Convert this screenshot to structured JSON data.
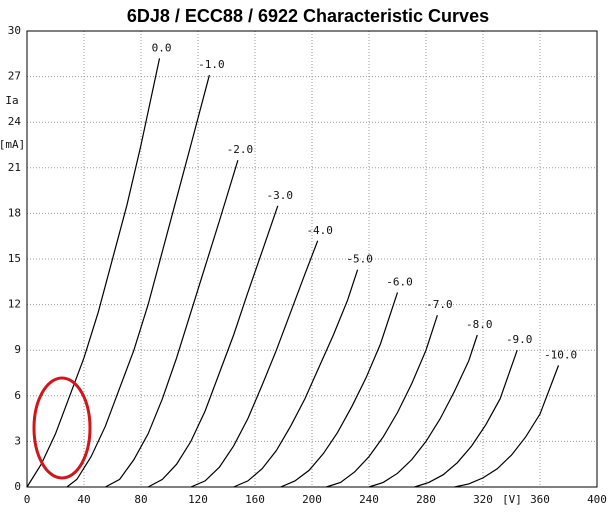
{
  "chart_data": {
    "type": "line",
    "title": "6DJ8 / ECC88 / 6922 Characteristic Curves",
    "ylabel": "Ia",
    "yunit": "[mA]",
    "xunit": "[V]",
    "xlim": [
      0,
      400
    ],
    "ylim": [
      0,
      30
    ],
    "xticks": [
      0,
      40,
      80,
      120,
      160,
      200,
      240,
      280,
      320,
      360,
      400
    ],
    "yticks": [
      0,
      3,
      6,
      9,
      12,
      15,
      18,
      21,
      24,
      27,
      30
    ],
    "grid": true,
    "series": [
      {
        "name": "0.0",
        "color": "#000000",
        "x": [
          0,
          10,
          20,
          30,
          40,
          50,
          60,
          70,
          80,
          93
        ],
        "values": [
          0,
          1.5,
          3.5,
          6,
          8.5,
          11.5,
          15,
          18.5,
          22.5,
          28.2
        ]
      },
      {
        "name": "-1.0",
        "color": "#000000",
        "x": [
          28,
          35,
          45,
          55,
          65,
          75,
          85,
          95,
          105,
          115,
          128
        ],
        "values": [
          0,
          0.5,
          2,
          4,
          6.5,
          9,
          12,
          15.5,
          19,
          22.5,
          27.1
        ]
      },
      {
        "name": "-2.0",
        "color": "#000000",
        "x": [
          55,
          65,
          75,
          85,
          95,
          105,
          115,
          125,
          135,
          148
        ],
        "values": [
          0,
          0.5,
          1.8,
          3.5,
          5.8,
          8.5,
          11.5,
          14.5,
          17.5,
          21.5
        ]
      },
      {
        "name": "-3.0",
        "color": "#000000",
        "x": [
          85,
          95,
          105,
          115,
          125,
          135,
          145,
          155,
          165,
          176
        ],
        "values": [
          0,
          0.5,
          1.5,
          3,
          5,
          7.5,
          10,
          12.8,
          15.5,
          18.5
        ]
      },
      {
        "name": "-4.0",
        "color": "#000000",
        "x": [
          115,
          125,
          135,
          145,
          155,
          165,
          175,
          185,
          195,
          204
        ],
        "values": [
          0,
          0.4,
          1.3,
          2.7,
          4.5,
          6.7,
          9,
          11.5,
          14,
          16.2
        ]
      },
      {
        "name": "-5.0",
        "color": "#000000",
        "x": [
          145,
          155,
          165,
          175,
          185,
          195,
          205,
          215,
          225,
          232
        ],
        "values": [
          0,
          0.4,
          1.2,
          2.4,
          4,
          5.8,
          7.9,
          10,
          12.3,
          14.3
        ]
      },
      {
        "name": "-6.0",
        "color": "#000000",
        "x": [
          178,
          188,
          198,
          208,
          218,
          228,
          238,
          248,
          260
        ],
        "values": [
          0,
          0.4,
          1.1,
          2.2,
          3.6,
          5.3,
          7.2,
          9.4,
          12.8
        ]
      },
      {
        "name": "-7.0",
        "color": "#000000",
        "x": [
          210,
          220,
          230,
          240,
          250,
          260,
          270,
          280,
          288
        ],
        "values": [
          0,
          0.3,
          1,
          2,
          3.3,
          4.9,
          6.8,
          9,
          11.3
        ]
      },
      {
        "name": "-8.0",
        "color": "#000000",
        "x": [
          240,
          250,
          260,
          270,
          280,
          290,
          300,
          310,
          316
        ],
        "values": [
          0,
          0.3,
          0.9,
          1.8,
          3,
          4.5,
          6.3,
          8.3,
          10
        ]
      },
      {
        "name": "-9.0",
        "color": "#000000",
        "x": [
          272,
          282,
          292,
          302,
          312,
          322,
          332,
          344
        ],
        "values": [
          0,
          0.3,
          0.8,
          1.6,
          2.7,
          4.1,
          5.8,
          9
        ]
      },
      {
        "name": "-10.0",
        "color": "#000000",
        "x": [
          300,
          310,
          320,
          330,
          340,
          350,
          360,
          373
        ],
        "values": [
          0,
          0.2,
          0.6,
          1.2,
          2.1,
          3.3,
          4.8,
          8
        ]
      }
    ]
  }
}
